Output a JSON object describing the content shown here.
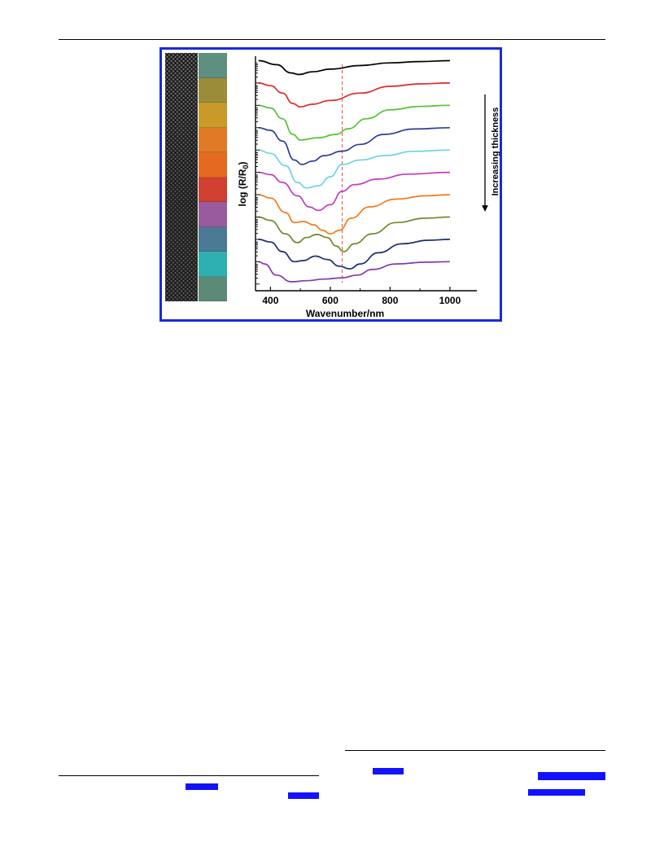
{
  "figure": {
    "colors": {
      "frame": "#1a2bd6",
      "guide_line": "#e8483a",
      "link_highlight": "#1212ff"
    },
    "swatch_colors": [
      "#5f8f80",
      "#9b8c3a",
      "#c79a2a",
      "#e07a26",
      "#e46a22",
      "#cf4030",
      "#9a5b9c",
      "#4a7a96",
      "#2fb0b0",
      "#5d8a76"
    ],
    "increasing_label": "Increasing thickness",
    "arrow_icon": "down-arrow-icon"
  },
  "chart_data": {
    "type": "line",
    "xlabel": "Wavenumber/nm",
    "ylabel": "log (R/R",
    "ylabel_sub": "0",
    "ylabel_close": ")",
    "xlim": [
      350,
      1090
    ],
    "xticks": [
      400,
      600,
      800,
      1000
    ],
    "ylim": [
      -10.3,
      0.2
    ],
    "vertical_guide_x": 640,
    "series": [
      {
        "color": "#000000",
        "offset": 0,
        "points": [
          [
            360,
            0
          ],
          [
            420,
            -0.18
          ],
          [
            470,
            -0.55
          ],
          [
            495,
            -0.62
          ],
          [
            540,
            -0.5
          ],
          [
            600,
            -0.38
          ],
          [
            700,
            -0.22
          ],
          [
            800,
            -0.1
          ],
          [
            900,
            -0.04
          ],
          [
            1000,
            0
          ]
        ]
      },
      {
        "color": "#e02828",
        "offset": -1,
        "points": [
          [
            360,
            0
          ],
          [
            400,
            -0.12
          ],
          [
            440,
            -0.45
          ],
          [
            475,
            -0.92
          ],
          [
            500,
            -1.07
          ],
          [
            540,
            -0.95
          ],
          [
            600,
            -0.78
          ],
          [
            700,
            -0.45
          ],
          [
            800,
            -0.15
          ],
          [
            900,
            -0.04
          ],
          [
            1000,
            0
          ]
        ]
      },
      {
        "color": "#55c232",
        "offset": -2,
        "points": [
          [
            360,
            0
          ],
          [
            400,
            -0.12
          ],
          [
            440,
            -0.6
          ],
          [
            475,
            -1.3
          ],
          [
            500,
            -1.55
          ],
          [
            560,
            -1.45
          ],
          [
            620,
            -1.3
          ],
          [
            660,
            -1.05
          ],
          [
            720,
            -0.6
          ],
          [
            800,
            -0.2
          ],
          [
            900,
            -0.05
          ],
          [
            1000,
            0
          ]
        ]
      },
      {
        "color": "#2c3c9a",
        "offset": -3,
        "points": [
          [
            360,
            0
          ],
          [
            400,
            -0.12
          ],
          [
            440,
            -0.6
          ],
          [
            480,
            -1.45
          ],
          [
            505,
            -1.65
          ],
          [
            540,
            -1.5
          ],
          [
            580,
            -1.25
          ],
          [
            640,
            -1.05
          ],
          [
            700,
            -0.75
          ],
          [
            780,
            -0.3
          ],
          [
            880,
            -0.06
          ],
          [
            1000,
            0
          ]
        ]
      },
      {
        "color": "#6ad6e0",
        "offset": -4,
        "points": [
          [
            360,
            0
          ],
          [
            400,
            -0.15
          ],
          [
            450,
            -0.7
          ],
          [
            490,
            -1.45
          ],
          [
            520,
            -1.7
          ],
          [
            560,
            -1.6
          ],
          [
            600,
            -1.2
          ],
          [
            640,
            -0.65
          ],
          [
            700,
            -0.45
          ],
          [
            780,
            -0.25
          ],
          [
            880,
            -0.06
          ],
          [
            1000,
            0
          ]
        ]
      },
      {
        "color": "#c23cb8",
        "offset": -5,
        "points": [
          [
            360,
            0
          ],
          [
            400,
            -0.1
          ],
          [
            440,
            -0.45
          ],
          [
            490,
            -1.05
          ],
          [
            530,
            -1.55
          ],
          [
            560,
            -1.7
          ],
          [
            600,
            -1.45
          ],
          [
            640,
            -0.85
          ],
          [
            680,
            -0.55
          ],
          [
            760,
            -0.3
          ],
          [
            860,
            -0.08
          ],
          [
            1000,
            0
          ]
        ]
      },
      {
        "color": "#f07a1a",
        "offset": -6,
        "points": [
          [
            360,
            0
          ],
          [
            400,
            -0.15
          ],
          [
            450,
            -0.8
          ],
          [
            480,
            -1.25
          ],
          [
            510,
            -1.2
          ],
          [
            545,
            -1.35
          ],
          [
            575,
            -1.6
          ],
          [
            600,
            -1.75
          ],
          [
            630,
            -1.6
          ],
          [
            670,
            -1.05
          ],
          [
            730,
            -0.55
          ],
          [
            820,
            -0.2
          ],
          [
            920,
            -0.05
          ],
          [
            1000,
            0
          ]
        ]
      },
      {
        "color": "#6e8a2c",
        "offset": -7,
        "points": [
          [
            360,
            0
          ],
          [
            400,
            -0.15
          ],
          [
            450,
            -0.75
          ],
          [
            490,
            -1.15
          ],
          [
            520,
            -0.92
          ],
          [
            555,
            -0.78
          ],
          [
            590,
            -0.92
          ],
          [
            620,
            -1.3
          ],
          [
            645,
            -1.55
          ],
          [
            680,
            -1.2
          ],
          [
            740,
            -0.75
          ],
          [
            820,
            -0.25
          ],
          [
            920,
            -0.05
          ],
          [
            1000,
            0
          ]
        ]
      },
      {
        "color": "#1e2a6e",
        "offset": -8,
        "points": [
          [
            360,
            0
          ],
          [
            400,
            -0.12
          ],
          [
            440,
            -0.55
          ],
          [
            480,
            -1.0
          ],
          [
            510,
            -0.95
          ],
          [
            550,
            -0.75
          ],
          [
            590,
            -0.9
          ],
          [
            630,
            -1.2
          ],
          [
            665,
            -1.32
          ],
          [
            700,
            -1.1
          ],
          [
            760,
            -0.6
          ],
          [
            840,
            -0.2
          ],
          [
            930,
            -0.04
          ],
          [
            1000,
            0
          ]
        ]
      },
      {
        "color": "#8a36a8",
        "offset": -9,
        "points": [
          [
            360,
            0
          ],
          [
            380,
            -0.1
          ],
          [
            420,
            -0.6
          ],
          [
            470,
            -0.9
          ],
          [
            520,
            -0.85
          ],
          [
            580,
            -0.78
          ],
          [
            640,
            -0.72
          ],
          [
            690,
            -0.6
          ],
          [
            740,
            -0.35
          ],
          [
            820,
            -0.1
          ],
          [
            920,
            -0.02
          ],
          [
            1000,
            0
          ]
        ]
      }
    ]
  }
}
